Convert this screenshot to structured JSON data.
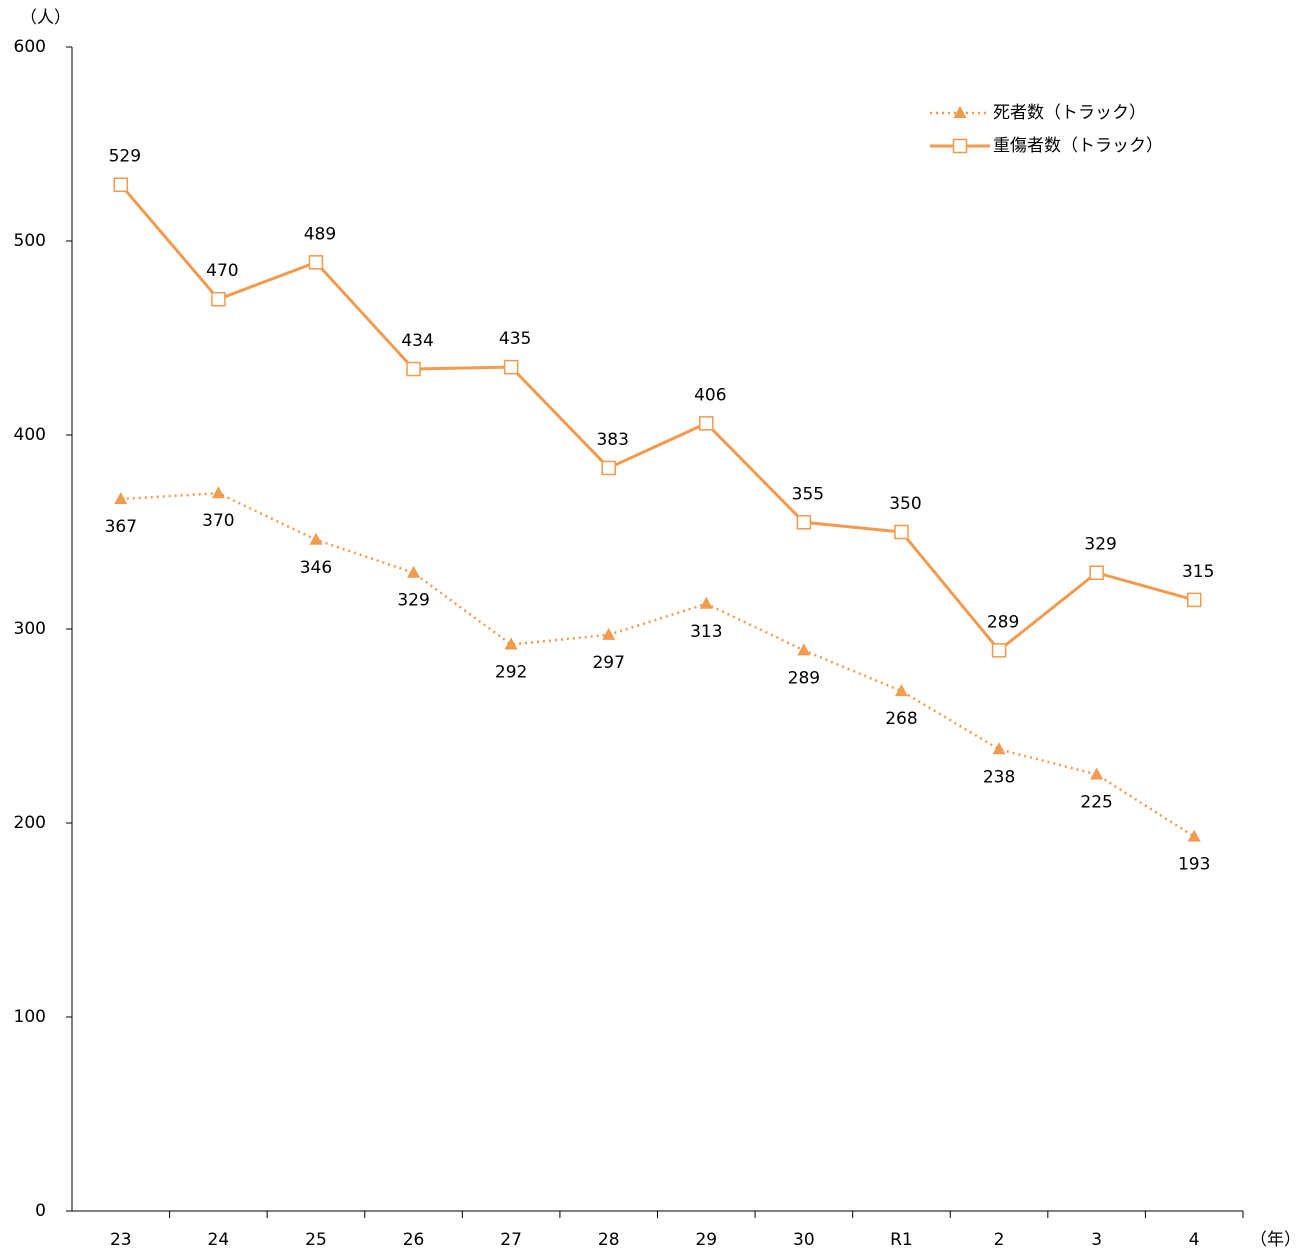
{
  "chart_data": {
    "type": "line",
    "y_label": "（人）",
    "x_label": "（年）",
    "categories": [
      "23",
      "24",
      "25",
      "26",
      "27",
      "28",
      "29",
      "30",
      "R1",
      "2",
      "3",
      "4"
    ],
    "series": [
      {
        "name": "死者数（トラック）",
        "color": "#f29a4e",
        "style": "dotted",
        "marker": "triangle",
        "values": [
          367,
          370,
          346,
          329,
          292,
          297,
          313,
          289,
          268,
          238,
          225,
          193
        ]
      },
      {
        "name": "重傷者数（トラック）",
        "color": "#f29a4e",
        "style": "solid",
        "marker": "square",
        "values": [
          529,
          470,
          489,
          434,
          435,
          383,
          406,
          355,
          350,
          289,
          329,
          315
        ]
      }
    ],
    "ylim": [
      0,
      600
    ],
    "yticks": [
      0,
      100,
      200,
      300,
      400,
      500,
      600
    ],
    "grid": false,
    "legend": "upper right"
  }
}
